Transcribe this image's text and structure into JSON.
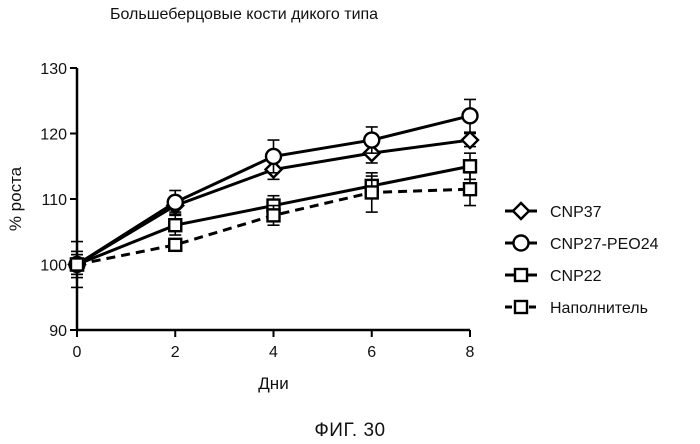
{
  "chart_data": {
    "type": "line",
    "title": "Большеберцовые кости дикого типа",
    "xlabel": "Дни",
    "ylabel": "% роста",
    "caption": "ФИГ. 30",
    "xlim": [
      0,
      8
    ],
    "ylim": [
      90,
      130
    ],
    "xticks": [
      0,
      2,
      4,
      6,
      8
    ],
    "yticks": [
      90,
      100,
      110,
      120,
      130
    ],
    "x": [
      0,
      2,
      4,
      6,
      8
    ],
    "legend_position": "right",
    "grid": false,
    "series": [
      {
        "name": "CNP37",
        "marker": "diamond",
        "dash": false,
        "values": [
          100.0,
          109.0,
          114.5,
          117.0,
          119.0
        ],
        "errors": [
          1.5,
          1.0,
          1.5,
          1.5,
          1.0
        ]
      },
      {
        "name": "CNP27-PEO24",
        "marker": "circle",
        "dash": false,
        "values": [
          100.0,
          109.5,
          116.5,
          119.0,
          122.7
        ],
        "errors": [
          1.5,
          1.8,
          2.5,
          2.0,
          2.5
        ]
      },
      {
        "name": "CNP22",
        "marker": "square",
        "dash": false,
        "values": [
          100.0,
          106.0,
          109.0,
          112.0,
          115.0
        ],
        "errors": [
          3.5,
          1.5,
          1.5,
          1.5,
          2.0
        ]
      },
      {
        "name": "Наполнитель",
        "marker": "square",
        "dash": true,
        "values": [
          100.0,
          103.0,
          107.5,
          111.0,
          111.5
        ],
        "errors": [
          2.0,
          0.5,
          1.5,
          3.0,
          2.5
        ]
      }
    ]
  }
}
